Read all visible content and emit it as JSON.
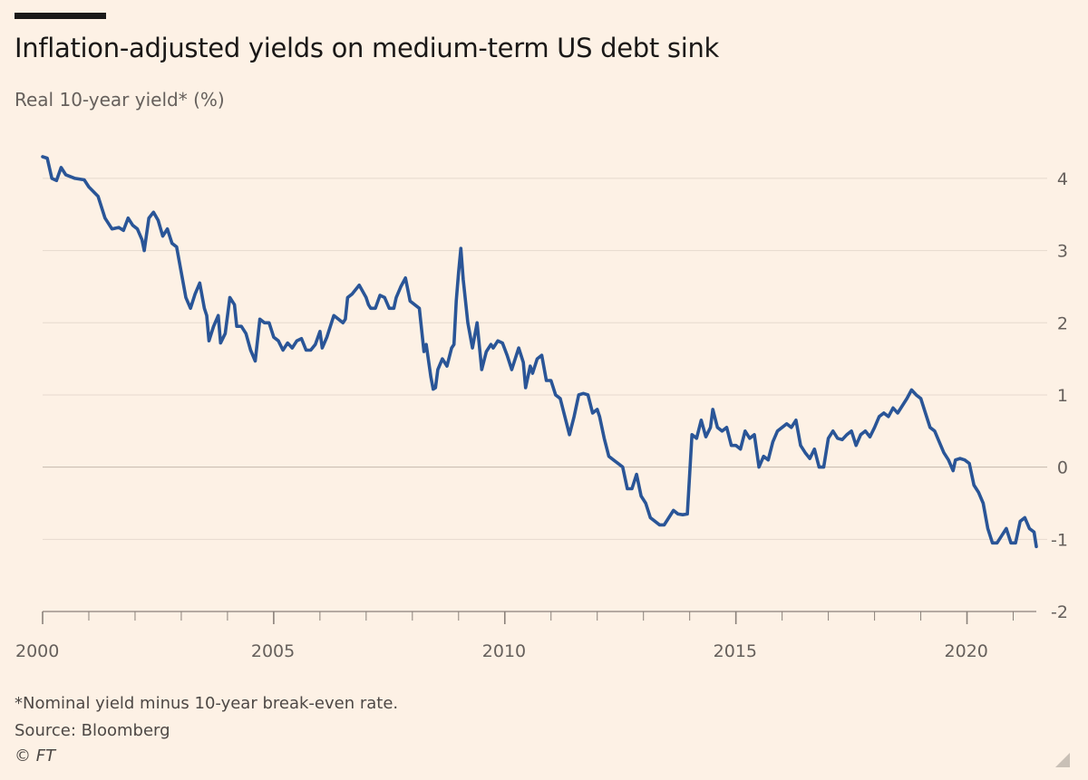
{
  "header": {
    "title": "Inflation-adjusted yields on medium-term US debt sink",
    "subtitle": "Real 10-year yield* (%)"
  },
  "footer": {
    "footnote": "*Nominal yield minus 10-year break-even rate.",
    "source": "Source: Bloomberg",
    "copyright": "© FT"
  },
  "colors": {
    "background": "#fdf1e5",
    "line": "#2a5597",
    "grid": "#e6d9ce",
    "zero_line": "#c5b8ad",
    "axis_text": "#66605c"
  },
  "chart_data": {
    "type": "line",
    "title": "Inflation-adjusted yields on medium-term US debt sink",
    "subtitle": "Real 10-year yield* (%)",
    "xlabel": "",
    "ylabel": "",
    "xlim": [
      2000,
      2021.5
    ],
    "ylim": [
      -2,
      4.4
    ],
    "y_ticks": [
      -2,
      -1,
      0,
      1,
      2,
      3,
      4
    ],
    "x_tick_labels": [
      "2000",
      "2005",
      "2010",
      "2015",
      "2020"
    ],
    "x_tick_values": [
      2000,
      2005,
      2010,
      2015,
      2020
    ],
    "grid": true,
    "y_axis_position": "right",
    "series": [
      {
        "values_xy": [
          [
            2000.0,
            4.3
          ],
          [
            2000.1,
            4.28
          ],
          [
            2000.2,
            4.0
          ],
          [
            2000.3,
            3.97
          ],
          [
            2000.4,
            4.15
          ],
          [
            2000.5,
            4.05
          ],
          [
            2000.7,
            4.0
          ],
          [
            2000.9,
            3.98
          ],
          [
            2001.0,
            3.88
          ],
          [
            2001.2,
            3.75
          ],
          [
            2001.35,
            3.45
          ],
          [
            2001.5,
            3.3
          ],
          [
            2001.65,
            3.32
          ],
          [
            2001.75,
            3.28
          ],
          [
            2001.85,
            3.45
          ],
          [
            2001.95,
            3.35
          ],
          [
            2002.05,
            3.3
          ],
          [
            2002.15,
            3.15
          ],
          [
            2002.2,
            3.0
          ],
          [
            2002.3,
            3.45
          ],
          [
            2002.4,
            3.53
          ],
          [
            2002.5,
            3.42
          ],
          [
            2002.6,
            3.2
          ],
          [
            2002.7,
            3.3
          ],
          [
            2002.8,
            3.1
          ],
          [
            2002.9,
            3.05
          ],
          [
            2003.0,
            2.7
          ],
          [
            2003.1,
            2.35
          ],
          [
            2003.2,
            2.2
          ],
          [
            2003.3,
            2.4
          ],
          [
            2003.4,
            2.55
          ],
          [
            2003.5,
            2.2
          ],
          [
            2003.55,
            2.1
          ],
          [
            2003.6,
            1.75
          ],
          [
            2003.7,
            1.95
          ],
          [
            2003.8,
            2.1
          ],
          [
            2003.85,
            1.72
          ],
          [
            2003.95,
            1.85
          ],
          [
            2004.05,
            2.35
          ],
          [
            2004.15,
            2.25
          ],
          [
            2004.2,
            1.95
          ],
          [
            2004.3,
            1.95
          ],
          [
            2004.4,
            1.85
          ],
          [
            2004.5,
            1.62
          ],
          [
            2004.6,
            1.47
          ],
          [
            2004.7,
            2.05
          ],
          [
            2004.8,
            2.0
          ],
          [
            2004.9,
            2.0
          ],
          [
            2005.0,
            1.8
          ],
          [
            2005.1,
            1.75
          ],
          [
            2005.2,
            1.62
          ],
          [
            2005.3,
            1.72
          ],
          [
            2005.4,
            1.65
          ],
          [
            2005.5,
            1.75
          ],
          [
            2005.6,
            1.78
          ],
          [
            2005.7,
            1.62
          ],
          [
            2005.8,
            1.62
          ],
          [
            2005.9,
            1.7
          ],
          [
            2006.0,
            1.88
          ],
          [
            2006.05,
            1.65
          ],
          [
            2006.15,
            1.8
          ],
          [
            2006.25,
            2.0
          ],
          [
            2006.3,
            2.1
          ],
          [
            2006.4,
            2.05
          ],
          [
            2006.5,
            2.0
          ],
          [
            2006.55,
            2.05
          ],
          [
            2006.6,
            2.35
          ],
          [
            2006.7,
            2.4
          ],
          [
            2006.85,
            2.52
          ],
          [
            2007.0,
            2.35
          ],
          [
            2007.05,
            2.25
          ],
          [
            2007.1,
            2.2
          ],
          [
            2007.2,
            2.2
          ],
          [
            2007.3,
            2.38
          ],
          [
            2007.4,
            2.35
          ],
          [
            2007.5,
            2.2
          ],
          [
            2007.6,
            2.2
          ],
          [
            2007.65,
            2.35
          ],
          [
            2007.75,
            2.5
          ],
          [
            2007.85,
            2.62
          ],
          [
            2007.95,
            2.3
          ],
          [
            2008.05,
            2.25
          ],
          [
            2008.15,
            2.2
          ],
          [
            2008.25,
            1.6
          ],
          [
            2008.3,
            1.7
          ],
          [
            2008.4,
            1.25
          ],
          [
            2008.45,
            1.08
          ],
          [
            2008.5,
            1.1
          ],
          [
            2008.55,
            1.35
          ],
          [
            2008.65,
            1.5
          ],
          [
            2008.75,
            1.4
          ],
          [
            2008.85,
            1.65
          ],
          [
            2008.9,
            1.7
          ],
          [
            2008.95,
            2.3
          ],
          [
            2009.0,
            2.7
          ],
          [
            2009.05,
            3.03
          ],
          [
            2009.1,
            2.6
          ],
          [
            2009.2,
            2.0
          ],
          [
            2009.3,
            1.65
          ],
          [
            2009.4,
            2.0
          ],
          [
            2009.5,
            1.35
          ],
          [
            2009.6,
            1.6
          ],
          [
            2009.7,
            1.7
          ],
          [
            2009.75,
            1.65
          ],
          [
            2009.85,
            1.75
          ],
          [
            2009.95,
            1.72
          ],
          [
            2010.05,
            1.55
          ],
          [
            2010.15,
            1.35
          ],
          [
            2010.3,
            1.65
          ],
          [
            2010.4,
            1.45
          ],
          [
            2010.45,
            1.1
          ],
          [
            2010.55,
            1.4
          ],
          [
            2010.6,
            1.3
          ],
          [
            2010.7,
            1.5
          ],
          [
            2010.8,
            1.55
          ],
          [
            2010.9,
            1.2
          ],
          [
            2011.0,
            1.2
          ],
          [
            2011.1,
            1.0
          ],
          [
            2011.2,
            0.95
          ],
          [
            2011.3,
            0.7
          ],
          [
            2011.4,
            0.45
          ],
          [
            2011.5,
            0.7
          ],
          [
            2011.6,
            1.0
          ],
          [
            2011.7,
            1.02
          ],
          [
            2011.8,
            1.0
          ],
          [
            2011.9,
            0.75
          ],
          [
            2012.0,
            0.8
          ],
          [
            2012.05,
            0.7
          ],
          [
            2012.15,
            0.4
          ],
          [
            2012.25,
            0.15
          ],
          [
            2012.35,
            0.1
          ],
          [
            2012.45,
            0.05
          ],
          [
            2012.55,
            0.0
          ],
          [
            2012.65,
            -0.3
          ],
          [
            2012.75,
            -0.3
          ],
          [
            2012.85,
            -0.1
          ],
          [
            2012.95,
            -0.4
          ],
          [
            2013.05,
            -0.5
          ],
          [
            2013.15,
            -0.7
          ],
          [
            2013.25,
            -0.75
          ],
          [
            2013.35,
            -0.8
          ],
          [
            2013.45,
            -0.8
          ],
          [
            2013.55,
            -0.7
          ],
          [
            2013.65,
            -0.6
          ],
          [
            2013.75,
            -0.65
          ],
          [
            2013.85,
            -0.66
          ],
          [
            2013.95,
            -0.65
          ],
          [
            2014.05,
            0.45
          ],
          [
            2014.15,
            0.4
          ],
          [
            2014.25,
            0.65
          ],
          [
            2014.35,
            0.42
          ],
          [
            2014.45,
            0.55
          ],
          [
            2014.5,
            0.8
          ],
          [
            2014.6,
            0.55
          ],
          [
            2014.7,
            0.5
          ],
          [
            2014.8,
            0.55
          ],
          [
            2014.9,
            0.3
          ],
          [
            2015.0,
            0.3
          ],
          [
            2015.1,
            0.25
          ],
          [
            2015.2,
            0.5
          ],
          [
            2015.3,
            0.4
          ],
          [
            2015.4,
            0.45
          ],
          [
            2015.5,
            0.0
          ],
          [
            2015.6,
            0.15
          ],
          [
            2015.7,
            0.1
          ],
          [
            2015.8,
            0.35
          ],
          [
            2015.9,
            0.5
          ],
          [
            2016.0,
            0.55
          ],
          [
            2016.1,
            0.6
          ],
          [
            2016.2,
            0.55
          ],
          [
            2016.3,
            0.65
          ],
          [
            2016.4,
            0.3
          ],
          [
            2016.5,
            0.2
          ],
          [
            2016.6,
            0.12
          ],
          [
            2016.7,
            0.25
          ],
          [
            2016.8,
            0.0
          ],
          [
            2016.9,
            0.0
          ],
          [
            2017.0,
            0.4
          ],
          [
            2017.1,
            0.5
          ],
          [
            2017.2,
            0.4
          ],
          [
            2017.3,
            0.38
          ],
          [
            2017.4,
            0.45
          ],
          [
            2017.5,
            0.5
          ],
          [
            2017.6,
            0.3
          ],
          [
            2017.7,
            0.45
          ],
          [
            2017.8,
            0.5
          ],
          [
            2017.9,
            0.42
          ],
          [
            2018.0,
            0.55
          ],
          [
            2018.1,
            0.7
          ],
          [
            2018.2,
            0.75
          ],
          [
            2018.3,
            0.7
          ],
          [
            2018.4,
            0.82
          ],
          [
            2018.5,
            0.75
          ],
          [
            2018.6,
            0.85
          ],
          [
            2018.7,
            0.95
          ],
          [
            2018.8,
            1.07
          ],
          [
            2018.9,
            1.0
          ],
          [
            2019.0,
            0.95
          ],
          [
            2019.1,
            0.75
          ],
          [
            2019.2,
            0.55
          ],
          [
            2019.3,
            0.5
          ],
          [
            2019.4,
            0.35
          ],
          [
            2019.5,
            0.2
          ],
          [
            2019.6,
            0.1
          ],
          [
            2019.7,
            -0.05
          ],
          [
            2019.75,
            0.1
          ],
          [
            2019.85,
            0.12
          ],
          [
            2019.95,
            0.1
          ],
          [
            2020.05,
            0.05
          ],
          [
            2020.15,
            -0.25
          ],
          [
            2020.25,
            -0.35
          ],
          [
            2020.35,
            -0.5
          ],
          [
            2020.45,
            -0.85
          ],
          [
            2020.55,
            -1.05
          ],
          [
            2020.65,
            -1.05
          ],
          [
            2020.75,
            -0.95
          ],
          [
            2020.85,
            -0.85
          ],
          [
            2020.95,
            -1.05
          ],
          [
            2021.05,
            -1.05
          ],
          [
            2021.15,
            -0.75
          ],
          [
            2021.25,
            -0.7
          ],
          [
            2021.35,
            -0.85
          ],
          [
            2021.45,
            -0.9
          ],
          [
            2021.5,
            -1.1
          ]
        ]
      }
    ]
  }
}
